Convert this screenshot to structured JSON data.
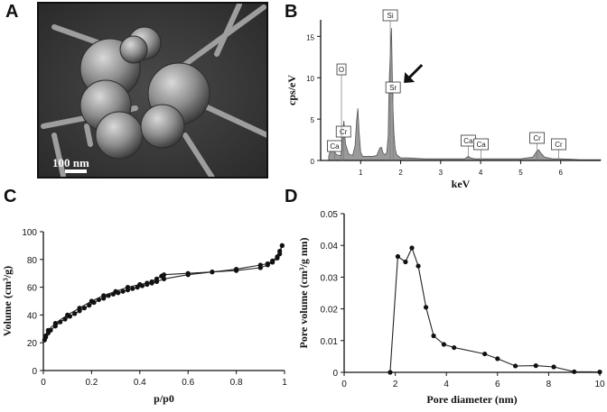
{
  "panels": {
    "a": "A",
    "b": "B",
    "c": "C",
    "d": "D"
  },
  "sem": {
    "scale_bar": "100 nm"
  },
  "chart_data": [
    {
      "panel": "B",
      "type": "area",
      "title": "",
      "xlabel": "keV",
      "ylabel": "cps/eV",
      "xlim": [
        0,
        7
      ],
      "ylim": [
        0,
        17
      ],
      "xticks": [
        1,
        2,
        3,
        4,
        5,
        6
      ],
      "yticks": [
        0,
        5,
        10,
        15
      ],
      "grid": false,
      "fill_color": "#9a9a9a",
      "spectrum": {
        "x": [
          0.2,
          0.25,
          0.28,
          0.32,
          0.4,
          0.5,
          0.52,
          0.55,
          0.58,
          0.62,
          0.7,
          0.8,
          0.86,
          0.9,
          0.93,
          0.96,
          1.0,
          1.05,
          1.15,
          1.3,
          1.4,
          1.48,
          1.52,
          1.56,
          1.6,
          1.65,
          1.69,
          1.71,
          1.74,
          1.77,
          1.8,
          1.83,
          1.86,
          1.9,
          2.0,
          2.2,
          2.6,
          3.0,
          3.6,
          3.69,
          3.75,
          3.85,
          4.0,
          5.0,
          5.3,
          5.4,
          5.45,
          5.5,
          5.6,
          5.8,
          6.0,
          6.5,
          7.0
        ],
        "y": [
          0.5,
          1.4,
          1.8,
          1.2,
          0.7,
          0.6,
          1.2,
          3.5,
          4.8,
          2.0,
          0.8,
          0.6,
          1.8,
          5.0,
          6.3,
          3.5,
          1.0,
          0.5,
          0.5,
          0.5,
          0.6,
          1.5,
          1.6,
          0.9,
          0.7,
          0.9,
          3.0,
          9.0,
          13.0,
          16.0,
          8.0,
          3.5,
          1.5,
          0.7,
          0.3,
          0.3,
          0.2,
          0.2,
          0.2,
          0.5,
          0.3,
          0.2,
          0.2,
          0.2,
          0.4,
          1.1,
          1.3,
          0.9,
          0.4,
          0.2,
          0.2,
          0.1,
          0.1
        ]
      },
      "element_labels": [
        {
          "label": "Ca",
          "x": 0.35
        },
        {
          "label": "Cr",
          "x": 0.57
        },
        {
          "label": "O",
          "x": 0.52
        },
        {
          "label": "Si",
          "x": 1.74
        },
        {
          "label": "Sr",
          "x": 1.81
        },
        {
          "label": "Ca",
          "x": 3.69
        },
        {
          "label": "Ca",
          "x": 4.01
        },
        {
          "label": "Cr",
          "x": 5.41
        },
        {
          "label": "Cr",
          "x": 5.95
        }
      ]
    },
    {
      "panel": "C",
      "type": "line",
      "title": "",
      "xlabel": "p/p0",
      "ylabel": "Volume (cm³/g)",
      "xlim": [
        0,
        1
      ],
      "ylim": [
        0,
        100
      ],
      "xticks": [
        0,
        0.2,
        0.4,
        0.6,
        0.8,
        1
      ],
      "yticks": [
        0,
        20,
        40,
        60,
        80,
        100
      ],
      "grid": false,
      "series": [
        {
          "x": [
            0.005,
            0.01,
            0.02,
            0.03,
            0.05,
            0.07,
            0.09,
            0.11,
            0.13,
            0.15,
            0.17,
            0.19,
            0.21,
            0.23,
            0.25,
            0.27,
            0.29,
            0.31,
            0.33,
            0.35,
            0.37,
            0.39,
            0.41,
            0.43,
            0.45,
            0.47,
            0.5,
            0.6,
            0.7,
            0.8,
            0.9,
            0.93,
            0.95,
            0.97,
            0.98,
            0.99
          ],
          "y": [
            22,
            24,
            27,
            29,
            32,
            35,
            37,
            39,
            41,
            43,
            45,
            47,
            49,
            51,
            52,
            54,
            55,
            56,
            57,
            58,
            59,
            60,
            61,
            62,
            63,
            64,
            66,
            69,
            71,
            72,
            74,
            76,
            78,
            81,
            84,
            90
          ]
        },
        {
          "x": [
            0.99,
            0.98,
            0.97,
            0.95,
            0.93,
            0.9,
            0.8,
            0.7,
            0.6,
            0.5,
            0.49,
            0.47,
            0.45,
            0.43,
            0.4,
            0.35,
            0.3,
            0.25,
            0.2,
            0.15,
            0.1,
            0.05,
            0.02,
            0.01
          ],
          "y": [
            90,
            86,
            82,
            79,
            77,
            76,
            73,
            71,
            70,
            69,
            68,
            66,
            64,
            63,
            62,
            60,
            57,
            54,
            50,
            45,
            40,
            34,
            29,
            25
          ]
        }
      ]
    },
    {
      "panel": "D",
      "type": "line",
      "title": "",
      "xlabel": "Pore diameter (nm)",
      "ylabel": "Pore volume (cm³/g nm)",
      "xlim": [
        0,
        10
      ],
      "ylim": [
        0,
        0.05
      ],
      "xticks": [
        0,
        2,
        4,
        6,
        8,
        10
      ],
      "yticks": [
        0,
        0.01,
        0.02,
        0.03,
        0.04,
        0.05
      ],
      "grid": false,
      "series": [
        {
          "x": [
            1.8,
            2.1,
            2.4,
            2.65,
            2.9,
            3.2,
            3.5,
            3.9,
            4.3,
            5.5,
            6.0,
            6.7,
            7.5,
            8.2,
            9.0,
            10.0
          ],
          "y": [
            0.0,
            0.0365,
            0.0348,
            0.0392,
            0.0335,
            0.0205,
            0.0115,
            0.0088,
            0.0078,
            0.0058,
            0.0043,
            0.002,
            0.0021,
            0.0017,
            0.0002,
            0.0001
          ]
        }
      ]
    }
  ]
}
